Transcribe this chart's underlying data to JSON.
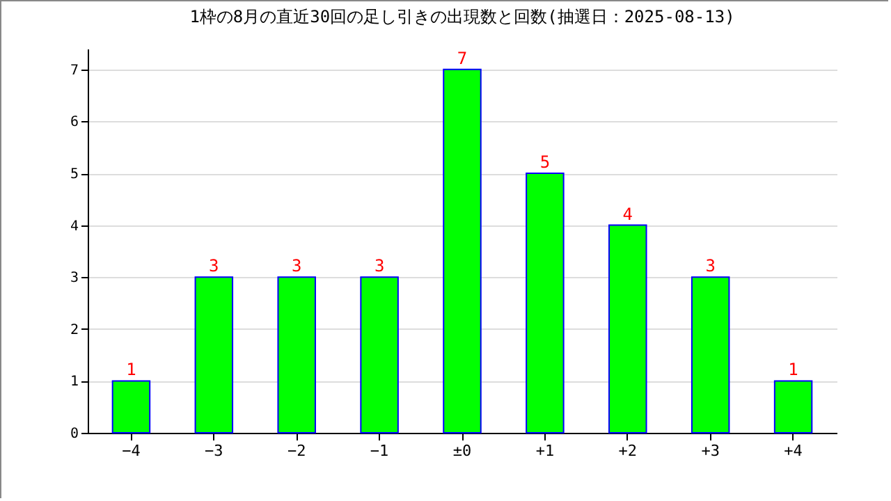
{
  "chart_data": {
    "type": "bar",
    "title": "1枠の8月の直近30回の足し引きの出現数と回数(抽選日：2025-08-13)",
    "categories": [
      "−4",
      "−3",
      "−2",
      "−1",
      "±0",
      "+1",
      "+2",
      "+3",
      "+4"
    ],
    "series": [
      {
        "color": "#00ff00",
        "values": [
          1,
          3,
          3,
          3,
          7,
          5,
          4,
          3,
          1
        ]
      }
    ],
    "ylim": [
      0,
      7.4
    ],
    "yticks": [
      0,
      1,
      2,
      3,
      4,
      5,
      6,
      7
    ],
    "grid": "y",
    "data_labels": true
  }
}
